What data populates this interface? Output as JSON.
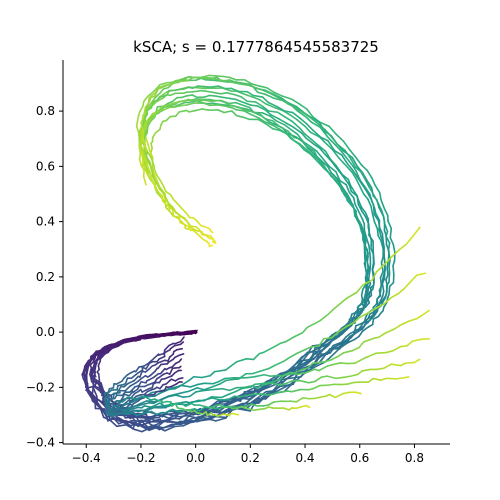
{
  "chart_data": {
    "type": "line",
    "title": "kSCA; s = 0.1777864545583725",
    "xlabel": "",
    "ylabel": "",
    "xlim": [
      -0.485,
      0.93
    ],
    "ylim": [
      -0.405,
      0.985
    ],
    "xticks": [
      -0.4,
      -0.2,
      0.0,
      0.2,
      0.4,
      0.6,
      0.8
    ],
    "xtick_labels": [
      "−0.4",
      "−0.2",
      "0.0",
      "0.2",
      "0.4",
      "0.6",
      "0.8"
    ],
    "yticks": [
      -0.4,
      -0.2,
      0.0,
      0.2,
      0.4,
      0.6,
      0.8
    ],
    "ytick_labels": [
      "−0.4",
      "−0.2",
      "0.0",
      "0.2",
      "0.4",
      "0.6",
      "0.8"
    ],
    "colormap": "viridis",
    "grid": false,
    "spines": [
      "left",
      "bottom"
    ],
    "trajectory_count": 22,
    "color_encoding": "time along trajectory (dark purple at start near origin, yellow at end)",
    "spiral_path": {
      "x": [
        0.0,
        -0.2,
        -0.35,
        -0.4,
        -0.3,
        -0.1,
        0.2,
        0.5,
        0.62,
        0.68,
        0.68,
        0.6,
        0.42,
        0.2,
        0.0,
        -0.15,
        -0.2,
        -0.15,
        -0.05,
        0.05,
        0.08
      ],
      "y": [
        0.0,
        -0.02,
        -0.07,
        -0.17,
        -0.31,
        -0.33,
        -0.25,
        -0.06,
        0.04,
        0.15,
        0.35,
        0.55,
        0.75,
        0.87,
        0.9,
        0.85,
        0.72,
        0.55,
        0.42,
        0.35,
        0.32
      ]
    },
    "hook_endpoints": [
      {
        "x": 0.78,
        "y": -0.16
      },
      {
        "x": 0.82,
        "y": -0.1
      },
      {
        "x": 0.85,
        "y": -0.02
      },
      {
        "x": 0.86,
        "y": 0.08
      },
      {
        "x": 0.84,
        "y": 0.22
      },
      {
        "x": 0.82,
        "y": 0.38
      },
      {
        "x": 0.6,
        "y": -0.22
      },
      {
        "x": 0.42,
        "y": -0.27
      },
      {
        "x": 0.15,
        "y": -0.3
      }
    ]
  }
}
